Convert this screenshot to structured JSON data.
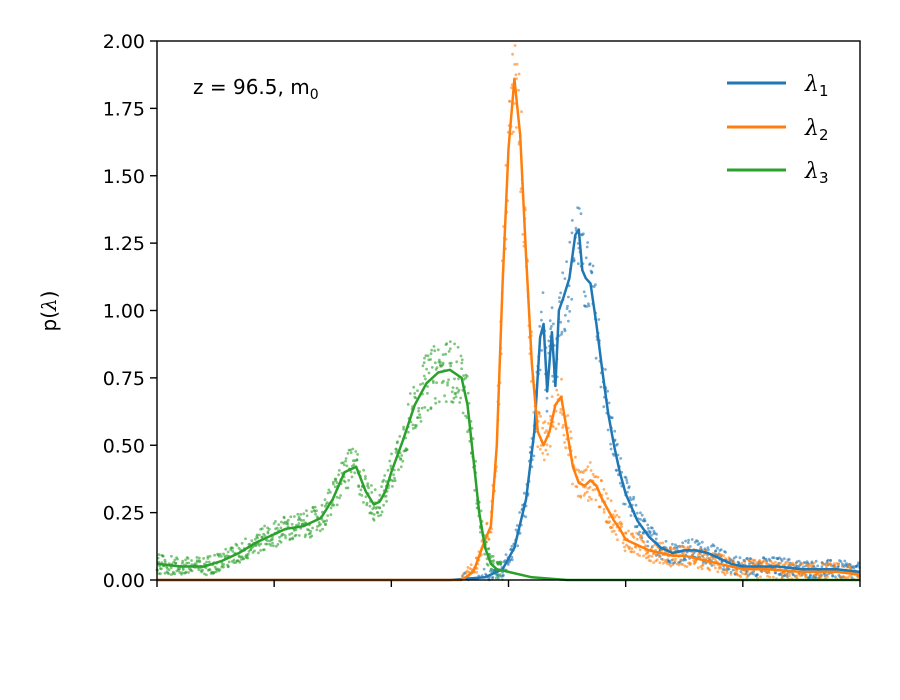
{
  "chart_data": {
    "type": "line",
    "ylabel": "p(λ)",
    "ylabel_prefix": "p(",
    "ylabel_symbol": "λ",
    "ylabel_suffix": ")",
    "annotation": "z = 96.5, m",
    "annotation_sub": "0",
    "xlim": [
      0,
      6
    ],
    "ylim": [
      0,
      2.0
    ],
    "x_ticks": [
      0,
      1,
      2,
      3,
      4,
      5,
      6
    ],
    "y_ticks": [
      0.0,
      0.25,
      0.5,
      0.75,
      1.0,
      1.25,
      1.5,
      1.75,
      2.0
    ],
    "y_tick_labels": [
      "0.00",
      "0.25",
      "0.50",
      "0.75",
      "1.00",
      "1.25",
      "1.50",
      "1.75",
      "2.00"
    ],
    "grid": false,
    "legend_position": "top-right",
    "series": [
      {
        "name": "λ",
        "name_sub": "1",
        "color": "#1f77b4",
        "x": [
          0.0,
          2.5,
          2.8,
          2.95,
          3.05,
          3.15,
          3.22,
          3.27,
          3.3,
          3.33,
          3.37,
          3.4,
          3.43,
          3.47,
          3.52,
          3.57,
          3.6,
          3.63,
          3.66,
          3.7,
          3.75,
          3.8,
          3.85,
          3.9,
          3.95,
          4.0,
          4.1,
          4.2,
          4.3,
          4.4,
          4.5,
          4.6,
          4.7,
          4.8,
          4.9,
          5.0,
          5.1,
          5.3,
          5.5,
          5.8,
          6.0
        ],
        "y": [
          0.0,
          0.0,
          0.01,
          0.04,
          0.12,
          0.3,
          0.55,
          0.9,
          0.95,
          0.7,
          0.92,
          0.72,
          1.0,
          1.05,
          1.12,
          1.28,
          1.3,
          1.15,
          1.12,
          1.1,
          0.95,
          0.78,
          0.62,
          0.5,
          0.4,
          0.32,
          0.22,
          0.16,
          0.12,
          0.1,
          0.11,
          0.11,
          0.1,
          0.08,
          0.06,
          0.05,
          0.05,
          0.05,
          0.04,
          0.04,
          0.03
        ]
      },
      {
        "name": "λ",
        "name_sub": "2",
        "color": "#ff7f0e",
        "x": [
          0.0,
          2.6,
          2.7,
          2.8,
          2.85,
          2.9,
          2.95,
          3.0,
          3.05,
          3.1,
          3.15,
          3.2,
          3.25,
          3.3,
          3.35,
          3.4,
          3.45,
          3.5,
          3.55,
          3.6,
          3.65,
          3.7,
          3.75,
          3.8,
          3.85,
          3.9,
          3.95,
          4.0,
          4.1,
          4.2,
          4.3,
          4.4,
          4.5,
          4.6,
          4.7,
          4.8,
          5.0,
          5.2,
          5.5,
          5.8,
          6.0
        ],
        "y": [
          0.0,
          0.0,
          0.03,
          0.15,
          0.2,
          0.5,
          1.1,
          1.6,
          1.86,
          1.65,
          1.2,
          0.8,
          0.55,
          0.5,
          0.55,
          0.65,
          0.68,
          0.55,
          0.42,
          0.36,
          0.35,
          0.37,
          0.35,
          0.3,
          0.26,
          0.22,
          0.19,
          0.15,
          0.13,
          0.11,
          0.1,
          0.09,
          0.09,
          0.08,
          0.07,
          0.06,
          0.04,
          0.04,
          0.03,
          0.03,
          0.02
        ]
      },
      {
        "name": "λ",
        "name_sub": "3",
        "color": "#2ca02c",
        "x": [
          0.0,
          0.2,
          0.4,
          0.55,
          0.7,
          0.85,
          1.0,
          1.1,
          1.25,
          1.4,
          1.5,
          1.6,
          1.7,
          1.78,
          1.85,
          1.9,
          1.95,
          2.0,
          2.1,
          2.2,
          2.3,
          2.4,
          2.5,
          2.6,
          2.65,
          2.7,
          2.75,
          2.8,
          2.85,
          2.9,
          3.0,
          3.2,
          3.5,
          4.0,
          5.0,
          6.0
        ],
        "y": [
          0.06,
          0.05,
          0.05,
          0.07,
          0.1,
          0.14,
          0.17,
          0.19,
          0.2,
          0.23,
          0.3,
          0.4,
          0.42,
          0.33,
          0.28,
          0.29,
          0.33,
          0.4,
          0.52,
          0.65,
          0.73,
          0.77,
          0.78,
          0.75,
          0.65,
          0.45,
          0.25,
          0.12,
          0.06,
          0.04,
          0.03,
          0.01,
          0.0,
          0.0,
          0.0,
          0.0
        ]
      }
    ]
  }
}
